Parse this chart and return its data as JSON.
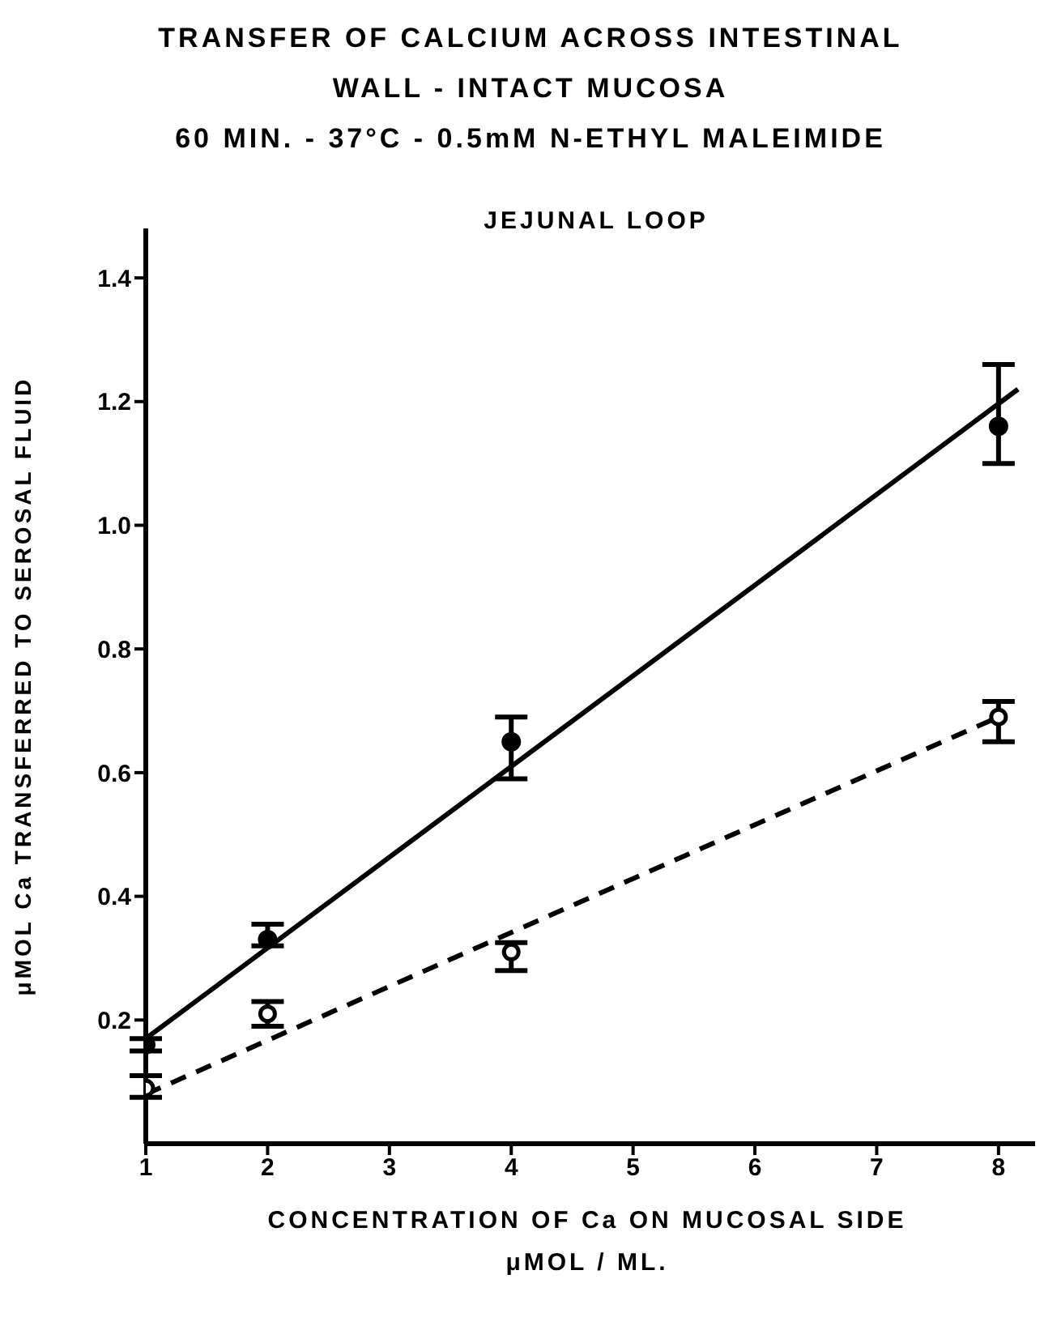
{
  "chart_data": {
    "type": "scatter",
    "title": "TRANSFER OF CALCIUM ACROSS INTESTINAL\nWALL - INTACT MUCOSA",
    "subtitle": "60 MIN. - 37°C - 0.5mM N-ETHYL MALEIMIDE",
    "annotations": [
      "JEJUNAL LOOP"
    ],
    "xlabel": "CONCENTRATION OF Ca ON MUCOSAL SIDE\nμMOL / ML.",
    "ylabel": "μMOL Ca TRANSFERRED TO SEROSAL FLUID",
    "x": [
      1,
      2,
      4,
      8
    ],
    "series": [
      {
        "color": "#000000",
        "marker": "circle",
        "values": [
          0.16,
          0.33,
          0.65,
          1.16
        ],
        "errors": [
          0.01,
          [
            0.32,
            0.355
          ],
          [
            0.59,
            0.69
          ],
          [
            1.1,
            1.26
          ]
        ]
      },
      {
        "color": "#000000",
        "marker": "circle",
        "values": [
          0.09,
          0.21,
          0.31,
          0.69
        ],
        "errors": [
          [
            0.075,
            0.11
          ],
          [
            0.19,
            0.23
          ],
          [
            0.28,
            0.325
          ],
          [
            0.65,
            0.715
          ]
        ]
      },
      {
        "type": "line",
        "color": "#000000",
        "line_style": "solid",
        "x": [
          1,
          8.16
        ],
        "values": [
          0.17,
          1.22
        ]
      },
      {
        "type": "line",
        "color": "#000000",
        "line_style": "dashed",
        "x": [
          1,
          8
        ],
        "values": [
          0.08,
          0.69
        ]
      }
    ],
    "xlim": [
      1,
      8.3
    ],
    "xticks": [
      1,
      2,
      3,
      4,
      5,
      6,
      7,
      8
    ],
    "ylim": [
      0,
      1.48
    ],
    "yticks": [
      0.2,
      0.4,
      0.6,
      0.8,
      {
        "value": 1,
        "label": "1.0"
      },
      1.2,
      1.4
    ],
    "grid": false
  }
}
